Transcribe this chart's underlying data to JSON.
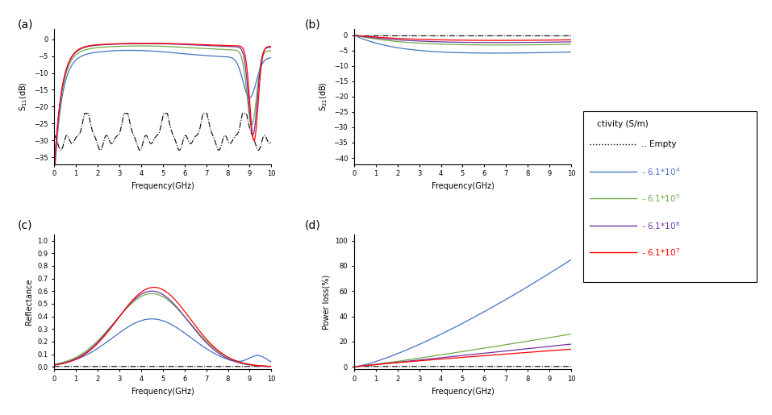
{
  "panel_labels": [
    "(a)",
    "(b)",
    "(c)",
    "(d)"
  ],
  "freq_range": [
    0,
    10
  ],
  "colors": {
    "empty": "#000000",
    "c1e4": "#4472C4",
    "c1e5": "#70AD47",
    "c1e6": "#7030A0",
    "c1e7": "#FF0000"
  },
  "legend_title": "ctivity (S/m)",
  "legend_entries": [
    ".. Empty",
    "- 6.1*10$^4$",
    "- 6.1*10$^5$",
    "- 6.1*10$^6$",
    "- 6.1*10$^7$"
  ],
  "s11_yticks": [
    0,
    -5,
    -10,
    -15,
    -20,
    -25,
    -30,
    -35
  ],
  "s21_yticks": [
    0,
    -5,
    -10,
    -15,
    -20,
    -25,
    -30,
    -35,
    -40
  ],
  "refl_yticks": [
    0.0,
    0.1,
    0.2,
    0.3,
    0.4,
    0.5,
    0.6,
    0.7,
    0.8,
    0.9,
    1.0
  ],
  "pl_yticks": [
    0,
    20,
    40,
    60,
    80,
    100
  ]
}
